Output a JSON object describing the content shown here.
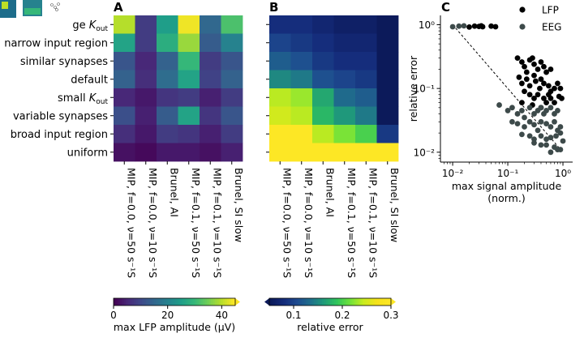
{
  "chart_data": [
    {
      "panel": "A",
      "type": "heatmap",
      "row_labels": [
        "large K",
        "narrow input region",
        "similar synapses",
        "default",
        "small K",
        "variable synapses",
        "broad input region",
        "uniform"
      ],
      "row_label_subscripts": [
        "out",
        "",
        "",
        "",
        "out",
        "",
        "",
        ""
      ],
      "row_label_cut_prefix": "ge ",
      "col_labels": [
        "MIP, f=0.0, ν=50 s⁻¹",
        "MIP, f=0.0, ν=10 s⁻¹",
        "Brunel, AI",
        "MIP, f=0.1, ν=50 s⁻¹",
        "MIP, f=0.1, ν=10 s⁻¹",
        "Brunel, SI slow"
      ],
      "col_labels_display": [
        "MIP, f=0.0, ν=50 s⁻¹S",
        "MIP, f=0.0, ν=10 s⁻¹S",
        "Brunel, AI",
        "MIP, f=0.1, ν=50 s⁻¹S",
        "MIP, f=0.1, ν=10 s⁻¹S",
        "Brunel, SI slow"
      ],
      "values": [
        [
          40,
          8,
          25,
          44,
          15,
          32
        ],
        [
          26,
          8,
          28,
          38,
          13,
          20
        ],
        [
          12,
          5,
          14,
          30,
          8,
          12
        ],
        [
          14,
          6,
          16,
          26,
          9,
          14
        ],
        [
          5,
          3,
          7,
          8,
          4,
          8
        ],
        [
          11,
          4,
          13,
          26,
          7,
          12
        ],
        [
          6,
          3,
          8,
          7,
          4,
          8
        ],
        [
          2,
          1,
          3,
          3,
          2,
          4
        ]
      ],
      "colorbar": {
        "label": "max LFP amplitude (μV)",
        "range": [
          0,
          45
        ],
        "ticks": [
          0,
          20,
          40
        ]
      }
    },
    {
      "panel": "B",
      "type": "heatmap",
      "row_labels": [
        "large K",
        "narrow input region",
        "similar synapses",
        "default",
        "small K",
        "variable synapses",
        "broad input region",
        "uniform"
      ],
      "col_labels": [
        "MIP, f=0.0, ν=50 s⁻¹",
        "MIP, f=0.0, ν=10 s⁻¹",
        "Brunel, AI",
        "MIP, f=0.1, ν=50 s⁻¹",
        "MIP, f=0.1, ν=10 s⁻¹",
        "Brunel, SI slow"
      ],
      "col_labels_display": [
        "MIP, f=0.0, ν=50 s⁻¹S",
        "MIP, f=0.0, ν=10 s⁻¹S",
        "Brunel, AI",
        "MIP, f=0.1, ν=50 s⁻¹S",
        "MIP, f=0.1, ν=10 s⁻¹S",
        "Brunel, SI slow"
      ],
      "values": [
        [
          0.08,
          0.08,
          0.07,
          0.06,
          0.06,
          0.04
        ],
        [
          0.1,
          0.09,
          0.08,
          0.07,
          0.07,
          0.04
        ],
        [
          0.12,
          0.11,
          0.09,
          0.08,
          0.08,
          0.04
        ],
        [
          0.15,
          0.14,
          0.11,
          0.1,
          0.09,
          0.04
        ],
        [
          0.24,
          0.23,
          0.17,
          0.13,
          0.12,
          0.04
        ],
        [
          0.25,
          0.24,
          0.18,
          0.16,
          0.14,
          0.05
        ],
        [
          0.3,
          0.3,
          0.24,
          0.22,
          0.2,
          0.09
        ],
        [
          0.3,
          0.3,
          0.3,
          0.3,
          0.3,
          0.3
        ]
      ],
      "colorbar": {
        "label": "relative error",
        "range": [
          0.05,
          0.3
        ],
        "ticks": [
          0.1,
          0.2,
          0.3
        ]
      }
    },
    {
      "panel": "C",
      "type": "scatter",
      "xlabel": "max signal amplitude",
      "xlabel2": "(norm.)",
      "ylabel": "relative error",
      "xscale": "log",
      "yscale": "log",
      "xlim": [
        0.006,
        1.5
      ],
      "ylim": [
        0.007,
        1.4
      ],
      "xticks": [
        0.01,
        0.1,
        1
      ],
      "xtick_labels": [
        "10⁻²",
        "10⁻¹",
        "10⁰"
      ],
      "yticks": [
        0.01,
        0.1,
        1
      ],
      "ytick_labels": [
        "10⁻²",
        "10⁻¹",
        "10⁰"
      ],
      "reference_line": [
        [
          0.01,
          1.0
        ],
        [
          1.0,
          0.01
        ]
      ],
      "series": [
        {
          "name": "LFP",
          "color": "#000000",
          "points": [
            [
              0.02,
              0.92
            ],
            [
              0.025,
              0.95
            ],
            [
              0.03,
              0.94
            ],
            [
              0.033,
              0.96
            ],
            [
              0.05,
              0.95
            ],
            [
              0.06,
              0.93
            ],
            [
              0.035,
              0.93
            ],
            [
              0.15,
              0.3
            ],
            [
              0.18,
              0.26
            ],
            [
              0.2,
              0.22
            ],
            [
              0.22,
              0.18
            ],
            [
              0.25,
              0.28
            ],
            [
              0.28,
              0.3
            ],
            [
              0.3,
              0.24
            ],
            [
              0.35,
              0.2
            ],
            [
              0.4,
              0.26
            ],
            [
              0.45,
              0.22
            ],
            [
              0.5,
              0.18
            ],
            [
              0.6,
              0.2
            ],
            [
              0.16,
              0.15
            ],
            [
              0.18,
              0.12
            ],
            [
              0.22,
              0.14
            ],
            [
              0.25,
              0.11
            ],
            [
              0.3,
              0.16
            ],
            [
              0.32,
              0.13
            ],
            [
              0.38,
              0.1
            ],
            [
              0.4,
              0.14
            ],
            [
              0.45,
              0.12
            ],
            [
              0.55,
              0.11
            ],
            [
              0.6,
              0.09
            ],
            [
              0.7,
              0.1
            ],
            [
              0.8,
              0.12
            ],
            [
              0.9,
              0.1
            ],
            [
              0.2,
              0.09
            ],
            [
              0.25,
              0.08
            ],
            [
              0.3,
              0.07
            ],
            [
              0.35,
              0.08
            ],
            [
              0.45,
              0.07
            ],
            [
              0.5,
              0.06
            ],
            [
              0.55,
              0.08
            ],
            [
              0.6,
              0.07
            ],
            [
              0.7,
              0.06
            ],
            [
              0.85,
              0.075
            ],
            [
              0.95,
              0.07
            ],
            [
              0.18,
              0.06
            ],
            [
              0.28,
              0.055
            ],
            [
              0.4,
              0.05
            ]
          ]
        },
        {
          "name": "EEG",
          "color": "#3d4a4a",
          "points": [
            [
              0.01,
              0.93
            ],
            [
              0.013,
              0.95
            ],
            [
              0.016,
              0.96
            ],
            [
              0.07,
              0.055
            ],
            [
              0.1,
              0.045
            ],
            [
              0.12,
              0.05
            ],
            [
              0.15,
              0.04
            ],
            [
              0.18,
              0.045
            ],
            [
              0.2,
              0.035
            ],
            [
              0.25,
              0.05
            ],
            [
              0.3,
              0.04
            ],
            [
              0.35,
              0.045
            ],
            [
              0.4,
              0.05
            ],
            [
              0.45,
              0.04
            ],
            [
              0.5,
              0.045
            ],
            [
              0.6,
              0.05
            ],
            [
              0.7,
              0.04
            ],
            [
              0.8,
              0.045
            ],
            [
              0.12,
              0.03
            ],
            [
              0.15,
              0.028
            ],
            [
              0.2,
              0.025
            ],
            [
              0.25,
              0.03
            ],
            [
              0.3,
              0.027
            ],
            [
              0.35,
              0.022
            ],
            [
              0.4,
              0.03
            ],
            [
              0.5,
              0.028
            ],
            [
              0.6,
              0.025
            ],
            [
              0.7,
              0.03
            ],
            [
              0.8,
              0.022
            ],
            [
              0.9,
              0.025
            ],
            [
              0.18,
              0.019
            ],
            [
              0.25,
              0.018
            ],
            [
              0.3,
              0.016
            ],
            [
              0.4,
              0.018
            ],
            [
              0.5,
              0.016
            ],
            [
              0.6,
              0.017
            ],
            [
              0.75,
              0.018
            ],
            [
              0.9,
              0.02
            ],
            [
              0.3,
              0.014
            ],
            [
              0.4,
              0.013
            ],
            [
              0.5,
              0.013
            ],
            [
              0.7,
              0.012
            ],
            [
              0.8,
              0.011
            ],
            [
              0.9,
              0.011
            ],
            [
              1.0,
              0.015
            ],
            [
              0.6,
              0.01
            ]
          ]
        }
      ],
      "legend": {
        "placement": "top-right",
        "entries": [
          "LFP",
          "EEG"
        ]
      }
    }
  ],
  "panel_letters": {
    "a": "A",
    "b": "B",
    "c": "C"
  },
  "colors": {
    "viridis": [
      "#440154",
      "#482878",
      "#3e4989",
      "#31688e",
      "#26828e",
      "#1f9e89",
      "#35b779",
      "#6ece58",
      "#b5de2b",
      "#fde725"
    ],
    "plasma_like": [
      "#0d0887",
      "#2c0594",
      "#1b3a9a",
      "#205c99",
      "#277f8e",
      "#22a884",
      "#44bf70",
      "#7ad151",
      "#bddf26",
      "#fde725"
    ]
  }
}
